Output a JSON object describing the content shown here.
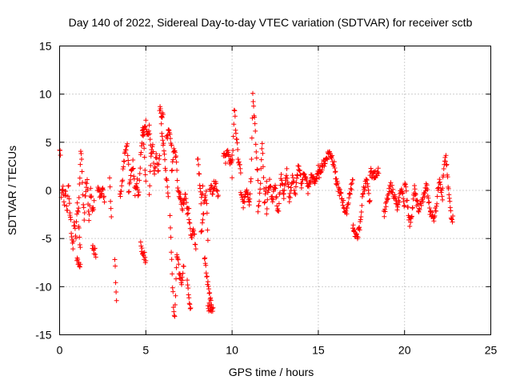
{
  "chart_data": {
    "type": "scatter",
    "title": "Day 140 of 2022, Sidereal Day-to-day VTEC variation (SDTVAR) for receiver sctb",
    "xlabel": "GPS time / hours",
    "ylabel": "SDTVAR / TECUs",
    "xlim": [
      0,
      25
    ],
    "ylim": [
      -15,
      15
    ],
    "xticks": [
      0,
      5,
      10,
      15,
      20,
      25
    ],
    "yticks": [
      -15,
      -10,
      -5,
      0,
      5,
      10,
      15
    ],
    "grid": true,
    "marker": "plus",
    "color": "#ff0000",
    "segments": [
      {
        "x0": 0.0,
        "x1": 0.05,
        "y": [
          4.2,
          4.0
        ]
      },
      {
        "x0": 0.1,
        "x1": 0.6,
        "y": [
          -0.5,
          0.5,
          -1.5,
          0.3,
          -2.5,
          1.2,
          -3.0
        ]
      },
      {
        "x0": 0.6,
        "x1": 1.2,
        "y": [
          -2,
          -4.5,
          -6,
          -3,
          -5,
          -1,
          -4,
          -6
        ]
      },
      {
        "x0": 1.0,
        "x1": 1.2,
        "y": [
          -7.2,
          -7.6
        ]
      },
      {
        "x0": 1.1,
        "x1": 1.5,
        "y": [
          -2,
          1,
          4.5,
          2,
          -1,
          -3,
          0.5
        ]
      },
      {
        "x0": 1.5,
        "x1": 2.0,
        "y": [
          -1,
          1,
          -3,
          0,
          -2,
          -1.5
        ]
      },
      {
        "x0": 1.9,
        "x1": 2.1,
        "y": [
          -6.0,
          -6.5
        ]
      },
      {
        "x0": 2.2,
        "x1": 2.6,
        "y": [
          0.3,
          -0.5,
          0.2,
          -0.8
        ]
      },
      {
        "x0": 2.9,
        "x1": 3.0,
        "y": [
          1.5,
          0.0,
          -1.5,
          -2.5
        ]
      },
      {
        "x0": 3.2,
        "x1": 3.3,
        "y": [
          -7,
          -8.5,
          -10,
          -11
        ]
      },
      {
        "x0": 3.5,
        "x1": 4.0,
        "y": [
          -0.5,
          0.5,
          2.5,
          3.8,
          5.0,
          3.0
        ]
      },
      {
        "x0": 4.0,
        "x1": 4.5,
        "y": [
          0,
          1.5,
          2.8,
          -0.5,
          1.0
        ]
      },
      {
        "x0": 4.5,
        "x1": 5.0,
        "y": [
          0,
          -1,
          2.5,
          4.5,
          6.2,
          3.5,
          1.0
        ]
      },
      {
        "x0": 4.7,
        "x1": 5.0,
        "y": [
          -5.8,
          -6.5,
          -7.2
        ]
      },
      {
        "x0": 4.8,
        "x1": 5.3,
        "y": [
          6.5,
          6.0,
          7.0,
          5.5,
          6.8,
          4.0
        ]
      },
      {
        "x0": 5.2,
        "x1": 5.8,
        "y": [
          0,
          3.5,
          5.0,
          1.5,
          4.0,
          2.0,
          3.2
        ]
      },
      {
        "x0": 5.8,
        "x1": 6.0,
        "y": [
          8.4,
          8.0,
          7.8
        ]
      },
      {
        "x0": 5.9,
        "x1": 6.3,
        "y": [
          6.5,
          5.0,
          3.0,
          1.0,
          -0.5
        ]
      },
      {
        "x0": 6.2,
        "x1": 6.5,
        "y": [
          5.5,
          6.2,
          4.8
        ]
      },
      {
        "x0": 6.4,
        "x1": 6.8,
        "y": [
          -3,
          -6,
          -9,
          -12,
          -13,
          -10.5,
          -7
        ]
      },
      {
        "x0": 6.5,
        "x1": 7.0,
        "y": [
          2,
          4.5,
          3.5,
          0,
          -0.5
        ]
      },
      {
        "x0": 6.8,
        "x1": 7.2,
        "y": [
          -6.5,
          -8.5,
          -10,
          -7.5
        ]
      },
      {
        "x0": 7.0,
        "x1": 7.5,
        "y": [
          -0.5,
          -2,
          -1,
          0,
          -2.5,
          -1.5
        ]
      },
      {
        "x0": 7.4,
        "x1": 7.6,
        "y": [
          -9,
          -11,
          -12.5
        ]
      },
      {
        "x0": 7.5,
        "x1": 7.9,
        "y": [
          -3,
          -5,
          -4,
          -6
        ]
      },
      {
        "x0": 8.0,
        "x1": 8.3,
        "y": [
          3.5,
          1.5,
          -1,
          0.5
        ]
      },
      {
        "x0": 8.2,
        "x1": 8.6,
        "y": [
          -4.5,
          -3,
          -1,
          -0.5,
          -5
        ]
      },
      {
        "x0": 8.4,
        "x1": 8.8,
        "y": [
          -7,
          -9,
          -10.5,
          -11.5
        ]
      },
      {
        "x0": 8.6,
        "x1": 8.9,
        "y": [
          -12.0,
          -12.5
        ]
      },
      {
        "x0": 8.7,
        "x1": 9.2,
        "y": [
          0.5,
          0,
          1.0,
          -0.5
        ]
      },
      {
        "x0": 9.5,
        "x1": 10.0,
        "y": [
          4,
          3,
          4.5,
          2.5,
          3.5
        ]
      },
      {
        "x0": 10.0,
        "x1": 10.5,
        "y": [
          1.5,
          8.5,
          5.5,
          3.0,
          2.0
        ]
      },
      {
        "x0": 10.5,
        "x1": 11.0,
        "y": [
          -0.5,
          -1.5,
          0.3,
          -1.0
        ]
      },
      {
        "x0": 11.0,
        "x1": 11.5,
        "y": [
          -1.5,
          1.5,
          10.0,
          7.5,
          4.0,
          1.0
        ]
      },
      {
        "x0": 11.5,
        "x1": 12.0,
        "y": [
          -2,
          0,
          5,
          -1.5,
          0.5
        ]
      },
      {
        "x0": 12.0,
        "x1": 13.0,
        "y": [
          -2,
          1,
          -1,
          0.5,
          -2.5,
          1.5,
          -0.5
        ]
      },
      {
        "x0": 13.0,
        "x1": 14.0,
        "y": [
          0,
          2,
          -1,
          1.5,
          -0.5,
          2.5,
          1.0
        ]
      },
      {
        "x0": 14.0,
        "x1": 15.0,
        "y": [
          0.5,
          2.0,
          0.0,
          1.5,
          0.8,
          2.2
        ]
      },
      {
        "x0": 15.0,
        "x1": 16.0,
        "y": [
          1.5,
          2.5,
          3.0,
          4.0,
          3.5,
          2.0
        ]
      },
      {
        "x0": 16.0,
        "x1": 17.0,
        "y": [
          1.0,
          0.0,
          -1.0,
          -2.5,
          -0.5,
          1.0
        ]
      },
      {
        "x0": 17.0,
        "x1": 18.0,
        "y": [
          -3.5,
          -5.0,
          -4.0,
          0.0,
          1.0,
          -1.5
        ]
      },
      {
        "x0": 18.0,
        "x1": 18.5,
        "y": [
          2.0,
          1.5,
          2.2
        ]
      },
      {
        "x0": 18.8,
        "x1": 20.0,
        "y": [
          -2.5,
          -1.0,
          0.5,
          -0.5,
          -2.0,
          0.3,
          -1.5
        ]
      },
      {
        "x0": 20.0,
        "x1": 20.6,
        "y": [
          1.0,
          -1.0,
          -3.5,
          -2.0,
          0.5
        ]
      },
      {
        "x0": 20.6,
        "x1": 21.5,
        "y": [
          -0.5,
          -2.0,
          -1.0,
          0.5,
          -2.5
        ]
      },
      {
        "x0": 21.5,
        "x1": 22.2,
        "y": [
          -2.0,
          -3.0,
          -1.5,
          1.5,
          -1.0
        ]
      },
      {
        "x0": 22.2,
        "x1": 22.8,
        "y": [
          0.5,
          2.5,
          3.5,
          1.0,
          -1.0,
          -2.5,
          -3.0
        ]
      }
    ]
  }
}
